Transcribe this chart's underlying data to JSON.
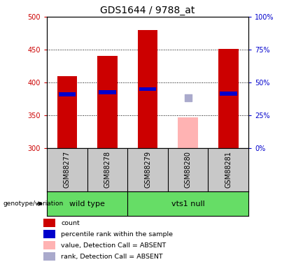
{
  "title": "GDS1644 / 9788_at",
  "samples": [
    "GSM88277",
    "GSM88278",
    "GSM88279",
    "GSM88280",
    "GSM88281"
  ],
  "bar_values": [
    410,
    441,
    480,
    null,
    451
  ],
  "bar_bottom": 300,
  "percentile_values": [
    382,
    385,
    390,
    null,
    383
  ],
  "absent_value": 347,
  "absent_rank": 377,
  "absent_sample_idx": 3,
  "ylim_left": [
    300,
    500
  ],
  "ylim_right": [
    0,
    100
  ],
  "yticks_left": [
    300,
    350,
    400,
    450,
    500
  ],
  "yticks_right": [
    0,
    25,
    50,
    75,
    100
  ],
  "bar_color": "#cc0000",
  "percentile_color": "#0000cc",
  "absent_bar_color": "#ffb3b3",
  "absent_rank_color": "#aaaacc",
  "bar_width": 0.5,
  "plot_bg": "#ffffff",
  "grid_color": "#000000",
  "genotype_label": "genotype/variation",
  "wild_type_label": "wild type",
  "vts1_null_label": "vts1 null",
  "group_color": "#66dd66",
  "sample_label_bg": "#c8c8c8",
  "legend_items": [
    {
      "label": "count",
      "color": "#cc0000"
    },
    {
      "label": "percentile rank within the sample",
      "color": "#0000cc"
    },
    {
      "label": "value, Detection Call = ABSENT",
      "color": "#ffb3b3"
    },
    {
      "label": "rank, Detection Call = ABSENT",
      "color": "#aaaacc"
    }
  ],
  "title_fontsize": 10,
  "tick_label_fontsize": 7,
  "sample_label_fontsize": 7,
  "left_tick_color": "#cc0000",
  "right_tick_color": "#0000cc"
}
